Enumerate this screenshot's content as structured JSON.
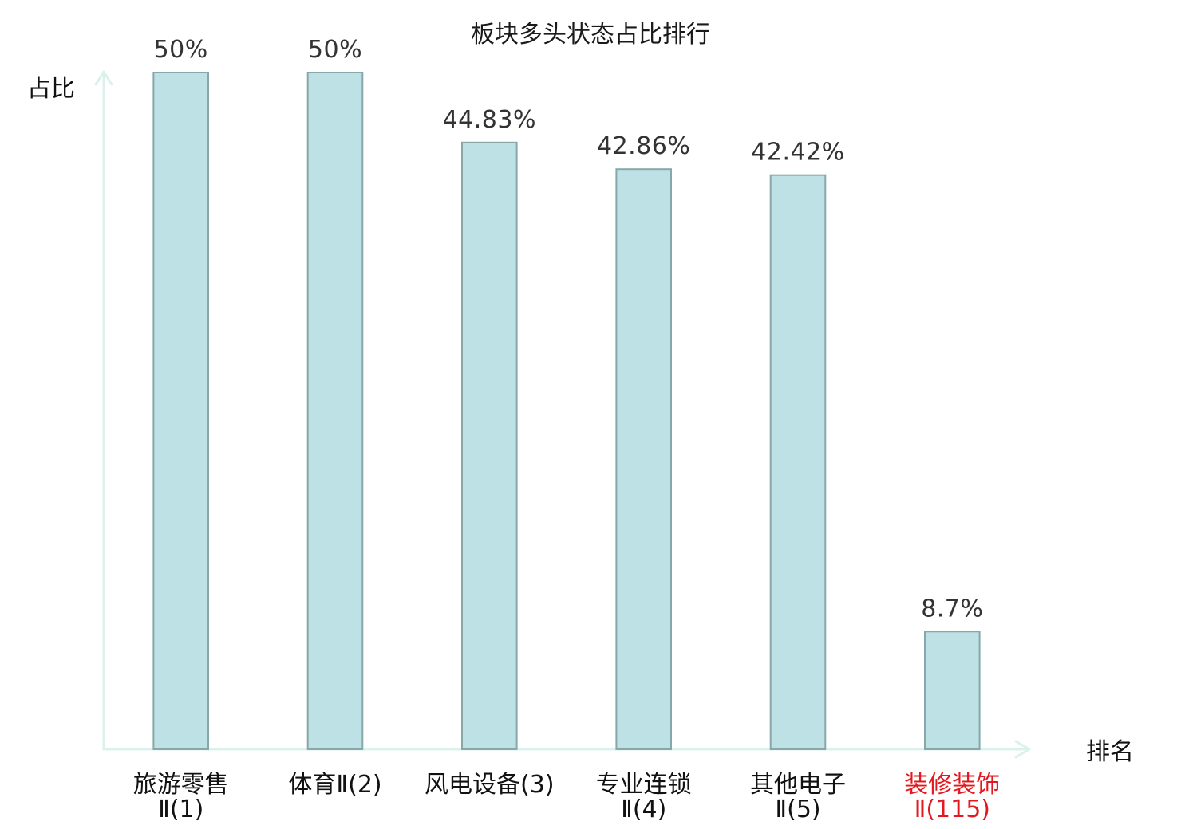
{
  "chart_data": {
    "type": "bar",
    "title": "板块多头状态占比排行",
    "xlabel": "排名",
    "ylabel": "占比",
    "categories": [
      "旅游零售Ⅱ(1)",
      "体育Ⅱ(2)",
      "风电设备(3)",
      "专业连锁Ⅱ(4)",
      "其他电子Ⅱ(5)",
      "装修装饰Ⅱ(115)"
    ],
    "values": [
      50,
      50,
      44.83,
      42.86,
      42.42,
      8.7
    ],
    "value_suffix": "%",
    "ylim": [
      0,
      50
    ],
    "grid": false,
    "y_ticks": false,
    "highlight_index": 5
  },
  "colors": {
    "bar_fill": "#bde1e4",
    "bar_stroke": "#87a8aa",
    "axis": "#dcf1ec",
    "title_text": "#1a1a1a",
    "value_text": "#333333",
    "tick_text": "#111111",
    "highlight": "#e3191f"
  }
}
